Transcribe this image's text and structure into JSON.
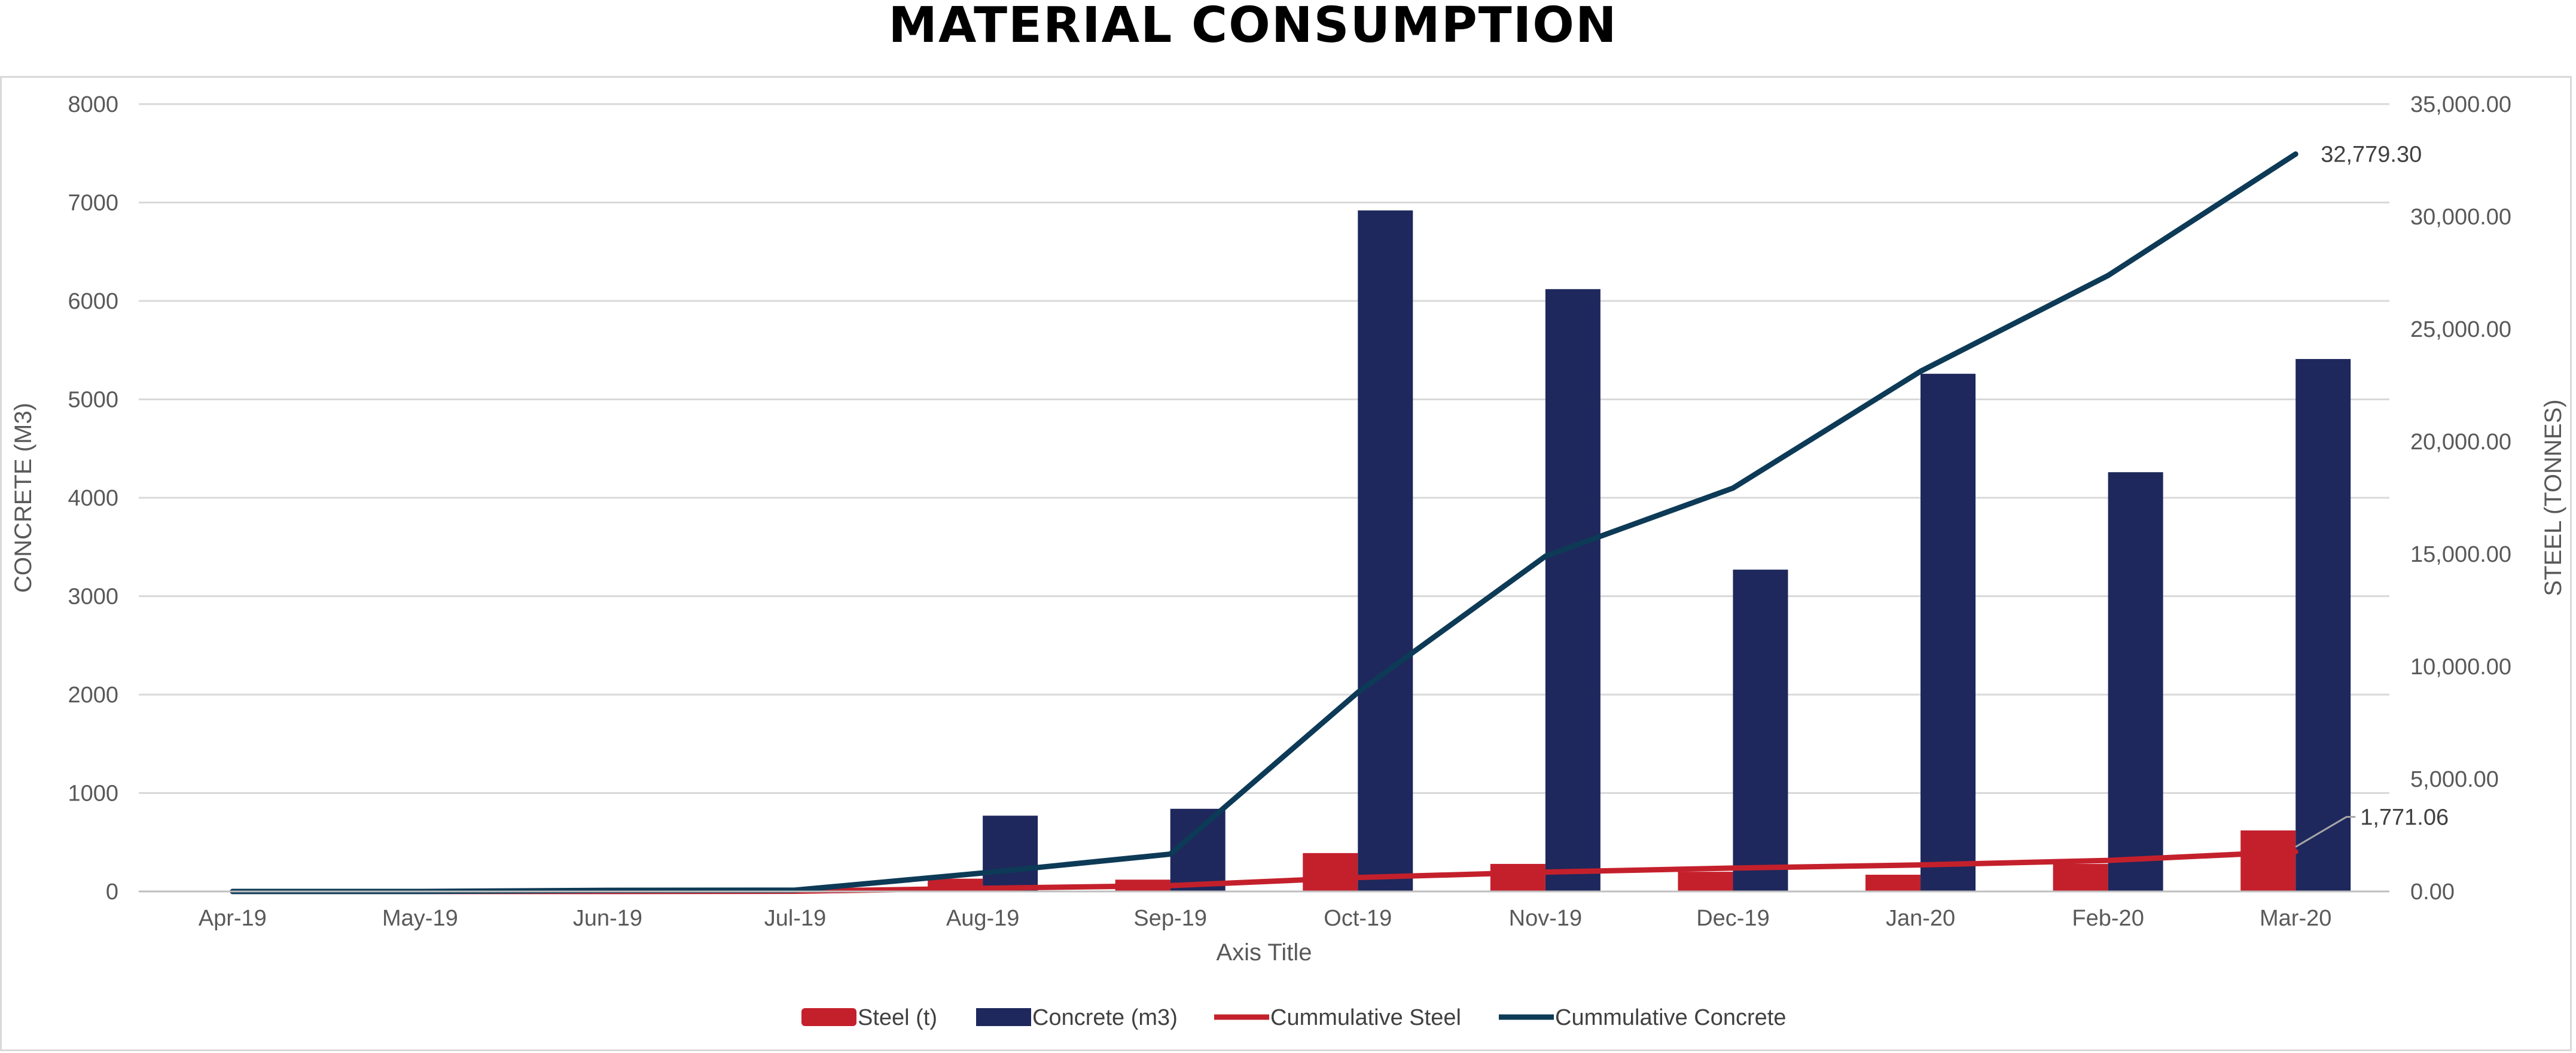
{
  "chart_data": {
    "type": "bar",
    "title": "MATERIAL CONSUMPTION",
    "categories": [
      "Apr-19",
      "May-19",
      "Jun-19",
      "Jul-19",
      "Aug-19",
      "Sep-19",
      "Oct-19",
      "Nov-19",
      "Dec-19",
      "Jan-20",
      "Feb-20",
      "Mar-20"
    ],
    "xlabel": "Axis Title",
    "ylabel_left": "CONCRETE (M3)",
    "ylabel_right": "STEEL (TONNES)",
    "y_left": {
      "min": 0,
      "max": 8000,
      "ticks": [
        "8000",
        "7000",
        "6000",
        "5000",
        "4000",
        "3000",
        "2000",
        "1000",
        "0"
      ]
    },
    "y_right": {
      "min": 0,
      "max": 35000,
      "ticks": [
        "35,000.00",
        "30,000.00",
        "25,000.00",
        "20,000.00",
        "15,000.00",
        "10,000.00",
        "5,000.00",
        "0.00"
      ]
    },
    "grid": true,
    "legend_position": "bottom",
    "series": [
      {
        "name": "Steel (t)",
        "kind": "bar",
        "axis": "left",
        "color": "#c4202c",
        "values": [
          0,
          0,
          0,
          5,
          130,
          120,
          390,
          280,
          200,
          170,
          280,
          620
        ]
      },
      {
        "name": "Concrete (m3)",
        "kind": "bar",
        "axis": "left",
        "color": "#1e285c",
        "values": [
          0,
          0,
          0,
          0,
          770,
          840,
          6920,
          6120,
          3270,
          5260,
          4260,
          5410
        ]
      },
      {
        "name": "Cummulative Steel",
        "kind": "line",
        "axis": "right",
        "color": "#c4202c",
        "values": [
          0,
          0,
          0,
          10,
          140,
          260,
          620,
          860,
          1040,
          1180,
          1380,
          1771.06
        ]
      },
      {
        "name": "Cummulative Concrete",
        "kind": "line",
        "axis": "right",
        "color": "#0d3a56",
        "values": [
          0,
          0,
          50,
          60,
          820,
          1660,
          8850,
          14900,
          17930,
          23120,
          27380,
          32779.3
        ]
      }
    ],
    "annotations": [
      {
        "series": "Cummulative Concrete",
        "category": "Mar-20",
        "text": "32,779.30"
      },
      {
        "series": "Cummulative Steel",
        "category": "Mar-20",
        "text": "1,771.06"
      }
    ]
  }
}
